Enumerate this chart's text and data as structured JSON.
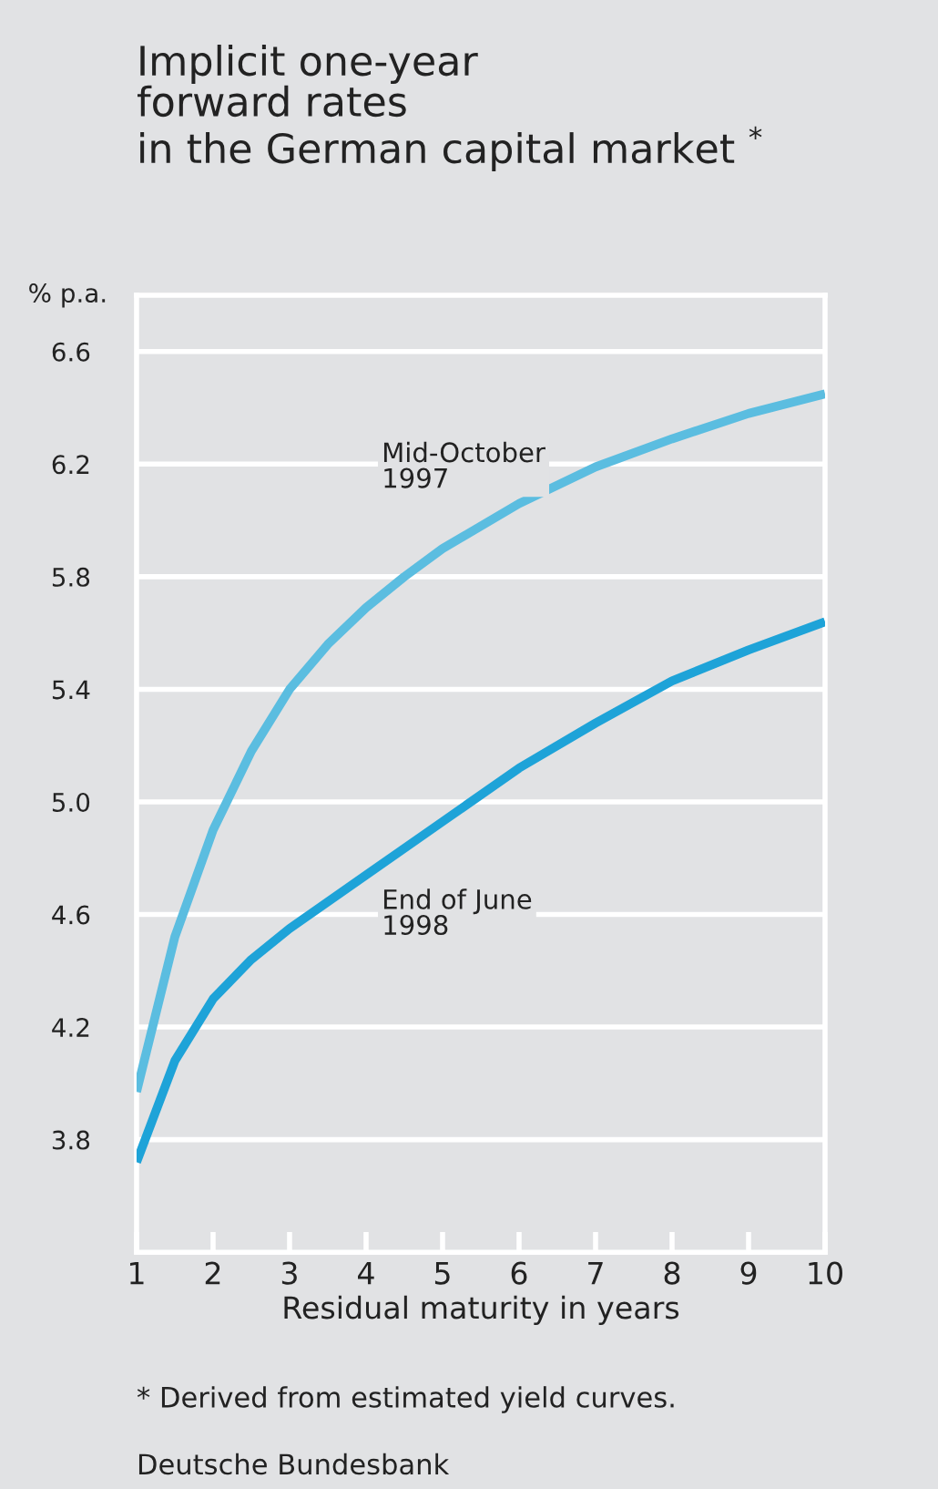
{
  "chart_data": {
    "type": "line",
    "title": "Implicit one-year\nforward rates\nin the German capital market $^{*}$",
    "ylabel": "% p.a.",
    "xlabel": "Residual maturity in years",
    "series": [
      {
        "x": [
          1,
          1.5,
          2,
          2.5,
          3,
          3.5,
          4,
          4.5,
          5,
          6,
          7,
          8,
          9,
          10
        ],
        "values": [
          3.97,
          4.52,
          4.9,
          5.18,
          5.4,
          5.56,
          5.69,
          5.8,
          5.9,
          6.06,
          6.19,
          6.29,
          6.38,
          6.45
        ],
        "color": "#5bbde0",
        "name": "Mid-October\n1997"
      },
      {
        "x": [
          1,
          1.5,
          2,
          2.5,
          3,
          4,
          5,
          6,
          7,
          8,
          9,
          10
        ],
        "values": [
          3.72,
          4.08,
          4.3,
          4.44,
          4.55,
          4.74,
          4.93,
          5.12,
          5.28,
          5.43,
          5.54,
          5.64
        ],
        "color": "#1ea3d8",
        "name": "End of June\n1998"
      }
    ],
    "annotations": [
      "* Derived from estimated yield curves.",
      "Deutsche Bundesbank"
    ],
    "xlim": [
      1,
      10
    ],
    "ylim": [
      3.4,
      6.8
    ],
    "xticks": [
      1,
      2,
      3,
      4,
      5,
      6,
      7,
      8,
      9,
      10
    ],
    "yticks": [
      {
        "value": 3.8,
        "label": "3.8"
      },
      {
        "value": 4.2,
        "label": "4.2"
      },
      {
        "value": 4.6,
        "label": "4.6"
      },
      {
        "value": 5.0,
        "label": "5.0"
      },
      {
        "value": 5.4,
        "label": "5.4"
      },
      {
        "value": 5.8,
        "label": "5.8"
      },
      {
        "value": 6.2,
        "label": "6.2"
      },
      {
        "value": 6.6,
        "label": "6.6"
      }
    ],
    "grid": "y",
    "legend": false,
    "marker": "none",
    "line_style": "solid"
  }
}
